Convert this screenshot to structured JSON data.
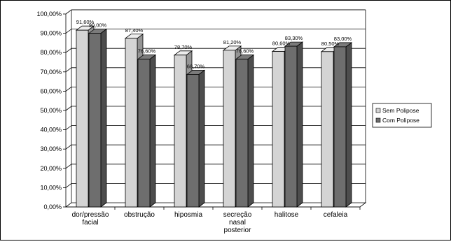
{
  "chart_data": {
    "type": "bar",
    "categories": [
      [
        "dor/pressão",
        "facial"
      ],
      [
        "obstrução"
      ],
      [
        "hiposmia"
      ],
      [
        "secreção",
        "nasal",
        "posterior"
      ],
      [
        "halitose"
      ],
      [
        "cefaleia"
      ]
    ],
    "series": [
      {
        "name": "Sem Polipose",
        "color": "#d4d4d4",
        "values": [
          91.6,
          87.4,
          78.7,
          81.2,
          80.6,
          80.5
        ],
        "labels": [
          "91,60%",
          "87,40%",
          "78,70%",
          "81,20%",
          "80,60%",
          "80,50%"
        ]
      },
      {
        "name": "Com Polipose",
        "color": "#6e6e6e",
        "values": [
          90.0,
          76.6,
          68.7,
          76.6,
          83.3,
          83.0
        ],
        "labels": [
          "90,00%",
          "76,60%",
          "68,70%",
          "76,60%",
          "83,30%",
          "83,00%"
        ]
      }
    ],
    "y_ticks": [
      "0,00%",
      "10,00%",
      "20,00%",
      "30,00%",
      "40,00%",
      "50,00%",
      "60,00%",
      "70,00%",
      "80,00%",
      "90,00%",
      "100,00%"
    ],
    "ylim": [
      0,
      100
    ],
    "grid": true,
    "legend_position": "right",
    "three_d": true
  }
}
